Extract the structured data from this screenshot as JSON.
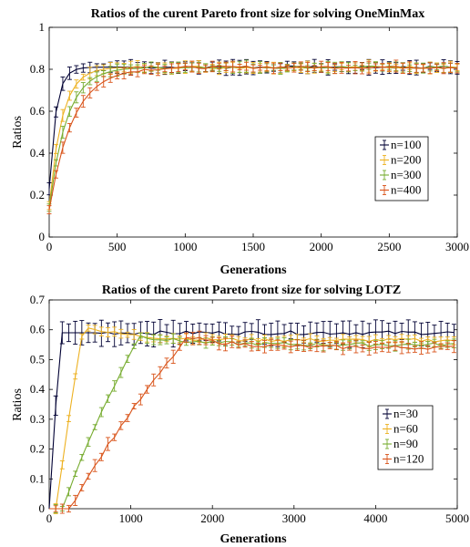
{
  "chart_data": [
    {
      "type": "line",
      "title": "Ratios of the curent Pareto front size for solving OneMinMax",
      "xlabel": "Generations",
      "ylabel": "Ratios",
      "xlim": [
        0,
        3000
      ],
      "ylim": [
        0,
        1
      ],
      "xticks": [
        0,
        500,
        1000,
        1500,
        2000,
        2500,
        3000
      ],
      "yticks": [
        0,
        0.2,
        0.4,
        0.6,
        0.8,
        1
      ],
      "xticklabels": [
        "0",
        "500",
        "1000",
        "1500",
        "2000",
        "2500",
        "3000"
      ],
      "yticklabels": [
        "0",
        "0.2",
        "0.4",
        "0.6",
        "0.8",
        "1"
      ],
      "legend_position": "right",
      "grid": false,
      "series": [
        {
          "name": "n=100",
          "color": "#000033",
          "model": {
            "start": 0.23,
            "plateau": 0.81,
            "tau": 50,
            "err": 0.025,
            "step": 50
          }
        },
        {
          "name": "n=200",
          "color": "#EDB120",
          "model": {
            "start": 0.15,
            "plateau": 0.81,
            "tau": 95,
            "err": 0.02,
            "step": 50
          }
        },
        {
          "name": "n=300",
          "color": "#77AC30",
          "model": {
            "start": 0.14,
            "plateau": 0.81,
            "tau": 130,
            "err": 0.02,
            "step": 50
          }
        },
        {
          "name": "n=400",
          "color": "#D95319",
          "model": {
            "start": 0.13,
            "plateau": 0.81,
            "tau": 175,
            "err": 0.02,
            "step": 50
          }
        }
      ]
    },
    {
      "type": "line",
      "title": "Ratios of the curent Pareto front size for solving LOTZ",
      "xlabel": "Generations",
      "ylabel": "Ratios",
      "xlim": [
        0,
        5000
      ],
      "ylim": [
        0,
        0.7
      ],
      "xticks": [
        0,
        1000,
        2000,
        3000,
        4000,
        5000
      ],
      "yticks": [
        0,
        0.1,
        0.2,
        0.3,
        0.4,
        0.5,
        0.6,
        0.7
      ],
      "xticklabels": [
        "0",
        "1000",
        "2000",
        "3000",
        "4000",
        "5000"
      ],
      "yticklabels": [
        "0",
        "0.1",
        "0.2",
        "0.3",
        "0.4",
        "0.5",
        "0.6",
        "0.7"
      ],
      "legend_position": "right",
      "grid": false,
      "series": [
        {
          "name": "n=30",
          "color": "#000033",
          "model": {
            "kind": "lotz",
            "start": 0.0,
            "delay": 0,
            "peak": 0.59,
            "peakAt": 150,
            "plateau": 0.59,
            "err": 0.025,
            "step": 80
          }
        },
        {
          "name": "n=60",
          "color": "#EDB120",
          "model": {
            "kind": "lotz",
            "start": 0.0,
            "delay": 100,
            "peak": 0.61,
            "peakAt": 420,
            "plateau": 0.565,
            "err": 0.012,
            "step": 80
          }
        },
        {
          "name": "n=90",
          "color": "#77AC30",
          "model": {
            "kind": "lotz",
            "start": 0.0,
            "delay": 180,
            "peak": 0.58,
            "peakAt": 1100,
            "plateau": 0.55,
            "err": 0.012,
            "step": 80
          }
        },
        {
          "name": "n=120",
          "color": "#D95319",
          "model": {
            "kind": "lotz",
            "start": 0.0,
            "delay": 280,
            "peak": 0.575,
            "peakAt": 1700,
            "plateau": 0.54,
            "err": 0.015,
            "step": 80
          }
        }
      ]
    }
  ]
}
